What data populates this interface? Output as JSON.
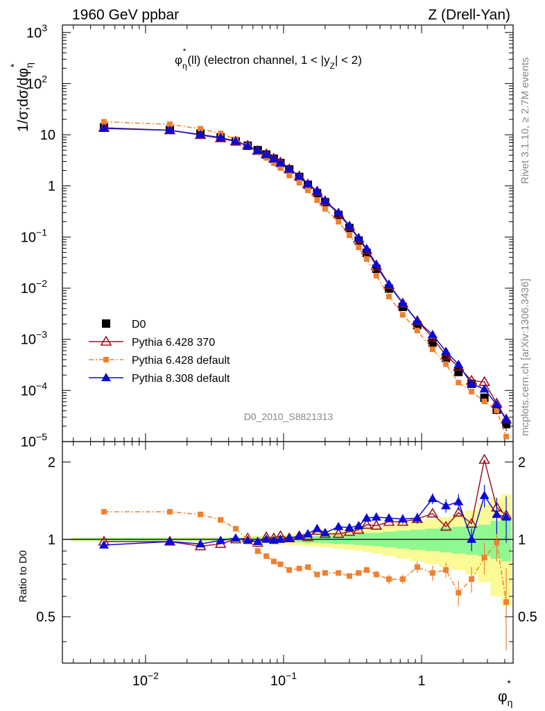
{
  "header": {
    "left_title": "1960 GeV ppbar",
    "right_title": "Z (Drell-Yan)"
  },
  "annotation": {
    "main": "φ",
    "sub": "η",
    "sup": "*",
    "rest": "(ll) (electron channel, 1 < |y",
    "y_sub": "Z",
    "end": "| < 2)"
  },
  "watermark": "D0_2010_S8821313",
  "side_labels": {
    "rivet": "Rivet 3.1.10, ≥ 2.7M events",
    "mcplots": "mcplots.cern.ch [arXiv:1306.3436]"
  },
  "axes": {
    "ylabel_main": "1/σ;dσ/dφ",
    "ylabel_main_sub": "η",
    "ylabel_main_sup": "*",
    "ylabel_ratio": "Ratio to D0",
    "xlabel": "φ",
    "xlabel_sub": "η",
    "xlabel_sup": "*",
    "x_ticks": [
      {
        "value": 0.01,
        "base": "10",
        "exp": "−2"
      },
      {
        "value": 0.1,
        "base": "10",
        "exp": "−1"
      },
      {
        "value": 1,
        "base": "1",
        "exp": ""
      }
    ],
    "y_ticks_main": [
      {
        "value": 1000,
        "base": "10",
        "exp": "3"
      },
      {
        "value": 100,
        "base": "10",
        "exp": "2"
      },
      {
        "value": 10,
        "base": "10",
        "exp": ""
      },
      {
        "value": 1,
        "base": "1",
        "exp": ""
      },
      {
        "value": 0.1,
        "base": "10",
        "exp": "−1"
      },
      {
        "value": 0.01,
        "base": "10",
        "exp": "−2"
      },
      {
        "value": 0.001,
        "base": "10",
        "exp": "−3"
      },
      {
        "value": 0.0001,
        "base": "10",
        "exp": "−4"
      },
      {
        "value": 1e-05,
        "base": "10",
        "exp": "−5"
      }
    ],
    "y_ticks_ratio": [
      {
        "value": 0.5,
        "label": "0.5"
      },
      {
        "value": 1,
        "label": "1"
      },
      {
        "value": 2,
        "label": "2"
      }
    ]
  },
  "legend": [
    {
      "key": "d0",
      "label": "D0"
    },
    {
      "key": "p6_370",
      "label": "Pythia 6.428 370"
    },
    {
      "key": "p6_def",
      "label": "Pythia 6.428 default"
    },
    {
      "key": "p8",
      "label": "Pythia 8.308 default"
    }
  ],
  "colors": {
    "d0": "#000000",
    "p6_370": "#9b1422",
    "p6_def": "#f08030",
    "p8": "#0a0ad8",
    "band_inner": "#90f890",
    "band_outer": "#fafa96"
  },
  "chart_data": {
    "type": "line",
    "x_scale": "log",
    "xlim": [
      0.0025,
      4.6
    ],
    "ylim_main": [
      1e-05,
      1400
    ],
    "y_scale_main": "log",
    "ylim_ratio": [
      0.33,
      2.4
    ],
    "y_scale_ratio": "log",
    "x": [
      0.005,
      0.015,
      0.025,
      0.035,
      0.045,
      0.055,
      0.065,
      0.075,
      0.085,
      0.095,
      0.11,
      0.13,
      0.15,
      0.175,
      0.2,
      0.25,
      0.3,
      0.35,
      0.4,
      0.47,
      0.58,
      0.73,
      0.93,
      1.2,
      1.5,
      1.85,
      2.3,
      2.85,
      3.5,
      4.1
    ],
    "series": [
      {
        "key": "d0",
        "name": "D0",
        "values": [
          14,
          12.5,
          10.5,
          8.9,
          7.4,
          6.1,
          5.0,
          4.1,
          3.4,
          2.8,
          2.1,
          1.5,
          1.05,
          0.72,
          0.48,
          0.27,
          0.15,
          0.085,
          0.049,
          0.024,
          0.0098,
          0.0043,
          0.0019,
          0.00086,
          0.00043,
          0.00023,
          0.000135,
          7.2e-05,
          4.2e-05,
          2.2e-05
        ],
        "errors": [
          0.4,
          0.3,
          0.3,
          0.2,
          0.2,
          0.15,
          0.12,
          0.1,
          0.09,
          0.07,
          0.05,
          0.04,
          0.03,
          0.02,
          0.015,
          0.008,
          0.005,
          0.003,
          0.002,
          0.001,
          0.0005,
          0.0002,
          0.0001,
          5e-05,
          3e-05,
          2e-05,
          1.5e-05,
          1e-05,
          8e-06,
          6e-06
        ]
      },
      {
        "key": "p6_370",
        "name": "Pythia 6.428 370",
        "ratio": [
          0.98,
          0.98,
          0.94,
          0.96,
          1.0,
          1.01,
          0.97,
          1.02,
          1.01,
          1.03,
          1.01,
          1.03,
          1.02,
          1.08,
          1.05,
          1.05,
          1.07,
          1.09,
          1.14,
          1.13,
          1.17,
          1.17,
          1.2,
          1.26,
          1.12,
          1.27,
          1.15,
          2.04,
          1.33,
          1.24
        ]
      },
      {
        "key": "p6_def",
        "name": "Pythia 6.428 default",
        "ratio": [
          1.28,
          1.28,
          1.25,
          1.19,
          1.1,
          1.0,
          0.9,
          0.86,
          0.82,
          0.8,
          0.76,
          0.77,
          0.78,
          0.73,
          0.74,
          0.74,
          0.72,
          0.74,
          0.76,
          0.73,
          0.7,
          0.7,
          0.78,
          0.74,
          0.76,
          0.62,
          0.7,
          0.85,
          0.97,
          0.57
        ],
        "ratio_errors": [
          0.01,
          0.01,
          0.01,
          0.01,
          0.01,
          0.01,
          0.01,
          0.01,
          0.01,
          0.01,
          0.01,
          0.01,
          0.01,
          0.01,
          0.01,
          0.01,
          0.01,
          0.01,
          0.02,
          0.02,
          0.03,
          0.03,
          0.04,
          0.05,
          0.05,
          0.07,
          0.08,
          0.12,
          0.15,
          0.2
        ]
      },
      {
        "key": "p8",
        "name": "Pythia 8.308 default",
        "ratio": [
          0.95,
          0.98,
          0.96,
          0.99,
          1.01,
          0.99,
          0.98,
          1.0,
          0.99,
          1.0,
          1.01,
          1.03,
          1.05,
          1.1,
          1.06,
          1.12,
          1.11,
          1.13,
          1.21,
          1.22,
          1.21,
          1.2,
          1.21,
          1.44,
          1.35,
          1.4,
          1.0,
          1.48,
          1.25,
          1.22
        ],
        "ratio_errors": [
          0.01,
          0.01,
          0.01,
          0.01,
          0.01,
          0.01,
          0.01,
          0.01,
          0.01,
          0.01,
          0.01,
          0.01,
          0.01,
          0.01,
          0.01,
          0.01,
          0.01,
          0.02,
          0.03,
          0.03,
          0.04,
          0.05,
          0.06,
          0.07,
          0.08,
          0.1,
          0.1,
          0.15,
          0.2,
          0.25
        ]
      }
    ],
    "uncertainty_band": {
      "inner_lo": [
        0.99,
        0.99,
        0.99,
        0.99,
        0.985,
        0.985,
        0.98,
        0.98,
        0.98,
        0.975,
        0.975,
        0.975,
        0.97,
        0.97,
        0.965,
        0.96,
        0.955,
        0.95,
        0.945,
        0.94,
        0.93,
        0.92,
        0.91,
        0.9,
        0.89,
        0.88,
        0.87,
        0.86,
        0.84,
        0.82
      ],
      "inner_hi": [
        1.01,
        1.01,
        1.01,
        1.01,
        1.015,
        1.015,
        1.02,
        1.02,
        1.02,
        1.025,
        1.025,
        1.025,
        1.03,
        1.03,
        1.035,
        1.04,
        1.045,
        1.05,
        1.055,
        1.06,
        1.07,
        1.08,
        1.09,
        1.1,
        1.11,
        1.12,
        1.13,
        1.14,
        1.18,
        1.2
      ],
      "outer_lo": [
        0.98,
        0.98,
        0.98,
        0.98,
        0.975,
        0.97,
        0.97,
        0.965,
        0.96,
        0.955,
        0.95,
        0.945,
        0.94,
        0.935,
        0.93,
        0.92,
        0.91,
        0.9,
        0.89,
        0.88,
        0.86,
        0.84,
        0.82,
        0.8,
        0.78,
        0.76,
        0.73,
        0.68,
        0.6,
        0.55
      ],
      "outer_hi": [
        1.02,
        1.02,
        1.02,
        1.02,
        1.025,
        1.03,
        1.03,
        1.035,
        1.04,
        1.045,
        1.05,
        1.055,
        1.06,
        1.065,
        1.07,
        1.08,
        1.09,
        1.1,
        1.11,
        1.12,
        1.14,
        1.16,
        1.18,
        1.2,
        1.22,
        1.25,
        1.3,
        1.38,
        1.45,
        1.5
      ]
    }
  }
}
